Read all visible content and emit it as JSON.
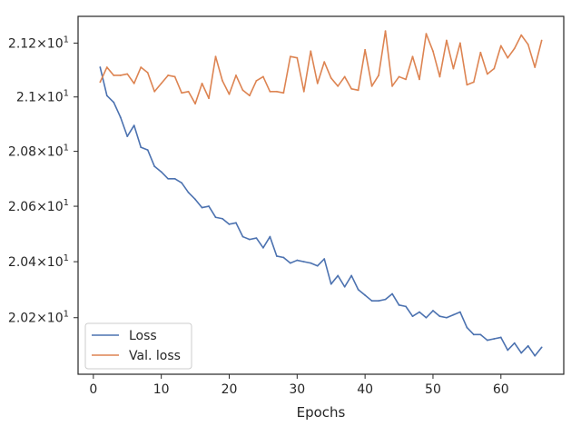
{
  "chart_data": {
    "type": "line",
    "title": "",
    "xlabel": "Epochs",
    "ylabel": "",
    "xlim": [
      -2.25,
      69.25
    ],
    "ylim": [
      20.0,
      21.3
    ],
    "log_y": true,
    "grid": false,
    "legend_position": "lower-left",
    "x_ticks": [
      0,
      10,
      20,
      30,
      40,
      50,
      60
    ],
    "x_tick_labels": [
      "0",
      "10",
      "20",
      "30",
      "40",
      "50",
      "60"
    ],
    "y_ticks": [
      20.2,
      20.4,
      20.6,
      20.8,
      21.0,
      21.2
    ],
    "y_tick_labels": [
      "2.02",
      "2.04",
      "2.06",
      "2.08",
      "2.1",
      "2.12"
    ],
    "y_tick_suffix": "10",
    "y_tick_exponent": "1",
    "series": [
      {
        "name": "Loss",
        "color": "#4c72b0",
        "x": [
          1,
          2,
          3,
          4,
          5,
          6,
          7,
          8,
          9,
          10,
          11,
          12,
          13,
          14,
          15,
          16,
          17,
          18,
          19,
          20,
          21,
          22,
          23,
          24,
          25,
          26,
          27,
          28,
          29,
          30,
          31,
          32,
          33,
          34,
          35,
          36,
          37,
          38,
          39,
          40,
          41,
          42,
          43,
          44,
          45,
          46,
          47,
          48,
          49,
          50,
          51,
          52,
          53,
          54,
          55,
          56,
          57,
          58,
          59,
          60,
          61,
          62,
          63,
          64,
          65,
          66
        ],
        "y": [
          21.11,
          21.005,
          20.98,
          20.925,
          20.855,
          20.895,
          20.815,
          20.805,
          20.745,
          20.725,
          20.7,
          20.7,
          20.685,
          20.65,
          20.625,
          20.595,
          20.6,
          20.56,
          20.555,
          20.535,
          20.54,
          20.49,
          20.48,
          20.485,
          20.45,
          20.49,
          20.42,
          20.415,
          20.395,
          20.405,
          20.4,
          20.395,
          20.385,
          20.41,
          20.32,
          20.35,
          20.31,
          20.35,
          20.3,
          20.28,
          20.26,
          20.26,
          20.265,
          20.285,
          20.245,
          20.24,
          20.205,
          20.22,
          20.2,
          20.225,
          20.205,
          20.2,
          20.21,
          20.22,
          20.165,
          20.14,
          20.14,
          20.12,
          20.125,
          20.13,
          20.085,
          20.11,
          20.075,
          20.1,
          20.065,
          20.095
        ]
      },
      {
        "name": "Val. loss",
        "color": "#dd8452",
        "x": [
          1,
          2,
          3,
          4,
          5,
          6,
          7,
          8,
          9,
          10,
          11,
          12,
          13,
          14,
          15,
          16,
          17,
          18,
          19,
          20,
          21,
          22,
          23,
          24,
          25,
          26,
          27,
          28,
          29,
          30,
          31,
          32,
          33,
          34,
          35,
          36,
          37,
          38,
          39,
          40,
          41,
          42,
          43,
          44,
          45,
          46,
          47,
          48,
          49,
          50,
          51,
          52,
          53,
          54,
          55,
          56,
          57,
          58,
          59,
          60,
          61,
          62,
          63,
          64,
          65,
          66
        ],
        "y": [
          21.055,
          21.11,
          21.08,
          21.08,
          21.085,
          21.05,
          21.11,
          21.09,
          21.02,
          21.05,
          21.08,
          21.075,
          21.015,
          21.02,
          20.975,
          21.05,
          20.995,
          21.15,
          21.06,
          21.01,
          21.08,
          21.025,
          21.005,
          21.06,
          21.075,
          21.02,
          21.02,
          21.015,
          21.15,
          21.145,
          21.02,
          21.17,
          21.05,
          21.13,
          21.07,
          21.04,
          21.075,
          21.03,
          21.025,
          21.175,
          21.04,
          21.08,
          21.245,
          21.04,
          21.075,
          21.065,
          21.15,
          21.065,
          21.235,
          21.17,
          21.075,
          21.21,
          21.105,
          21.2,
          21.045,
          21.055,
          21.165,
          21.085,
          21.105,
          21.19,
          21.145,
          21.18,
          21.23,
          21.195,
          21.11,
          21.21
        ]
      }
    ]
  }
}
